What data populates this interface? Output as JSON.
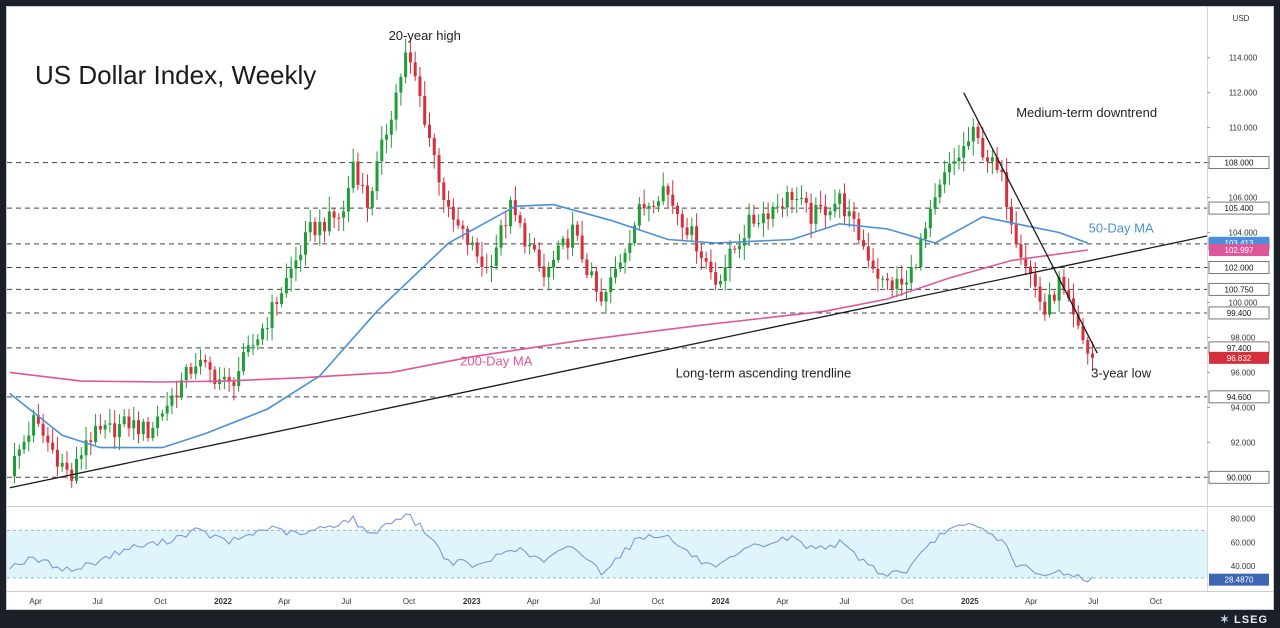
{
  "title": "US Dollar Index, Weekly",
  "axis_unit": "USD",
  "brand": "LSEG",
  "colors": {
    "up": "#1f9d37",
    "down": "#d62f3c",
    "ma50": "#4a90d9",
    "ma200": "#e0569a",
    "trend": "#1a1a1a",
    "rsi_line": "#7a98d8",
    "rsi_band": "#dff5fb"
  },
  "chart_data": [
    {
      "type": "candlestick",
      "title": "US Dollar Index, Weekly",
      "ylim": [
        88.5,
        115.5
      ],
      "xlim": [
        "2021-02-18",
        "2025-12-15"
      ],
      "y_ticks": [
        "114.000",
        "112.000",
        "110.000",
        "108.000",
        "106.000",
        "104.000",
        "102.000",
        "100.000",
        "98.000",
        "96.000",
        "94.000",
        "92.000",
        "90.000"
      ],
      "x_ticks": [
        {
          "label": "Apr",
          "date": "2021-04-01"
        },
        {
          "label": "Jul",
          "date": "2021-07-01"
        },
        {
          "label": "Oct",
          "date": "2021-10-01"
        },
        {
          "label": "2022",
          "date": "2022-01-01"
        },
        {
          "label": "Apr",
          "date": "2022-04-01"
        },
        {
          "label": "Jul",
          "date": "2022-07-01"
        },
        {
          "label": "Oct",
          "date": "2022-10-01"
        },
        {
          "label": "2023",
          "date": "2023-01-01"
        },
        {
          "label": "Apr",
          "date": "2023-04-01"
        },
        {
          "label": "Jul",
          "date": "2023-07-01"
        },
        {
          "label": "Oct",
          "date": "2023-10-01"
        },
        {
          "label": "2024",
          "date": "2024-01-01"
        },
        {
          "label": "Apr",
          "date": "2024-04-01"
        },
        {
          "label": "Jul",
          "date": "2024-07-01"
        },
        {
          "label": "Oct",
          "date": "2024-10-01"
        },
        {
          "label": "2025",
          "date": "2025-01-01"
        },
        {
          "label": "Apr",
          "date": "2025-04-01"
        },
        {
          "label": "Jul",
          "date": "2025-07-01"
        },
        {
          "label": "Oct",
          "date": "2025-10-01"
        }
      ],
      "horizontal_levels": [
        {
          "value": 108.0,
          "label": "108.000"
        },
        {
          "value": 105.4,
          "label": "105.400"
        },
        {
          "value": 103.35,
          "label": "103.350"
        },
        {
          "value": 102.0,
          "label": "102.000"
        },
        {
          "value": 100.75,
          "label": "100.750"
        },
        {
          "value": 99.4,
          "label": "99.400"
        },
        {
          "value": 97.4,
          "label": "97.400"
        },
        {
          "value": 94.6,
          "label": "94.600"
        },
        {
          "value": 90.0,
          "label": "90.000"
        }
      ],
      "value_tags": [
        {
          "value": 103.413,
          "label": "103.413",
          "color": "#4a90d9"
        },
        {
          "value": 102.997,
          "label": "102.997",
          "color": "#e0569a"
        },
        {
          "value": 96.832,
          "label": "96.832",
          "color": "#d62f3c"
        }
      ],
      "price_path": [
        [
          "2021-02-22",
          90.4
        ],
        [
          "2021-03-29",
          93.2
        ],
        [
          "2021-05-24",
          89.9
        ],
        [
          "2021-06-14",
          92.2
        ],
        [
          "2021-08-16",
          93.1
        ],
        [
          "2021-09-13",
          92.6
        ],
        [
          "2021-11-22",
          96.6
        ],
        [
          "2022-01-10",
          95.2
        ],
        [
          "2022-03-07",
          99.0
        ],
        [
          "2022-05-09",
          104.1
        ],
        [
          "2022-06-27",
          105.1
        ],
        [
          "2022-07-11",
          108.1
        ],
        [
          "2022-08-01",
          105.6
        ],
        [
          "2022-09-26",
          114.1
        ],
        [
          "2022-10-10",
          112.8
        ],
        [
          "2022-11-28",
          105.0
        ],
        [
          "2023-01-23",
          101.9
        ],
        [
          "2023-02-27",
          105.4
        ],
        [
          "2023-04-17",
          101.4
        ],
        [
          "2023-05-29",
          104.1
        ],
        [
          "2023-07-10",
          99.8
        ],
        [
          "2023-09-04",
          105.2
        ],
        [
          "2023-10-09",
          106.6
        ],
        [
          "2023-11-27",
          103.4
        ],
        [
          "2023-12-25",
          101.2
        ],
        [
          "2024-02-12",
          104.5
        ],
        [
          "2024-04-15",
          106.2
        ],
        [
          "2024-05-13",
          104.9
        ],
        [
          "2024-06-24",
          105.9
        ],
        [
          "2024-08-26",
          101.1
        ],
        [
          "2024-09-30",
          101.0
        ],
        [
          "2024-11-25",
          107.2
        ],
        [
          "2025-01-06",
          109.6
        ],
        [
          "2025-02-17",
          107.0
        ],
        [
          "2025-03-10",
          103.8
        ],
        [
          "2025-04-21",
          99.4
        ],
        [
          "2025-05-12",
          101.1
        ],
        [
          "2025-06-09",
          98.3
        ],
        [
          "2025-06-23",
          97.2
        ],
        [
          "2025-07-01",
          96.8
        ]
      ],
      "ma50": [
        [
          "2021-02-22",
          94.8
        ],
        [
          "2021-05-10",
          92.4
        ],
        [
          "2021-07-05",
          91.7
        ],
        [
          "2021-10-04",
          91.7
        ],
        [
          "2021-12-06",
          92.5
        ],
        [
          "2022-03-07",
          93.9
        ],
        [
          "2022-05-23",
          95.8
        ],
        [
          "2022-08-15",
          99.5
        ],
        [
          "2022-11-28",
          103.4
        ],
        [
          "2023-03-06",
          105.5
        ],
        [
          "2023-05-01",
          105.6
        ],
        [
          "2023-07-24",
          104.7
        ],
        [
          "2023-10-16",
          103.6
        ],
        [
          "2023-12-25",
          103.4
        ],
        [
          "2024-04-15",
          103.6
        ],
        [
          "2024-06-24",
          104.5
        ],
        [
          "2024-09-02",
          104.2
        ],
        [
          "2024-11-11",
          103.4
        ],
        [
          "2025-01-20",
          104.9
        ],
        [
          "2025-03-10",
          104.5
        ],
        [
          "2025-05-12",
          104.0
        ],
        [
          "2025-06-23",
          103.4
        ]
      ],
      "ma200": [
        [
          "2021-02-22",
          96.0
        ],
        [
          "2021-06-07",
          95.5
        ],
        [
          "2021-10-04",
          95.45
        ],
        [
          "2022-01-03",
          95.5
        ],
        [
          "2022-05-02",
          95.7
        ],
        [
          "2022-09-05",
          96.0
        ],
        [
          "2023-01-02",
          96.9
        ],
        [
          "2023-06-05",
          97.8
        ],
        [
          "2023-12-04",
          98.7
        ],
        [
          "2024-06-03",
          99.5
        ],
        [
          "2024-09-02",
          100.2
        ],
        [
          "2024-12-02",
          101.4
        ],
        [
          "2025-03-03",
          102.4
        ],
        [
          "2025-06-23",
          103.0
        ]
      ],
      "lines": [
        {
          "name": "Long-term ascending trendline",
          "from": [
            "2021-02-22",
            89.4
          ],
          "to": [
            "2025-12-15",
            103.8
          ]
        },
        {
          "name": "Medium-term downtrend",
          "from": [
            "2024-12-23",
            112.0
          ],
          "to": [
            "2025-07-07",
            97.1
          ]
        }
      ],
      "annotations": [
        {
          "text": "20-year high",
          "at": [
            "2022-10-24",
            115.0
          ]
        },
        {
          "text": "Medium-term downtrend",
          "at": [
            "2025-03-10",
            110.6
          ]
        },
        {
          "text": "50-Day MA",
          "at": [
            "2025-08-11",
            104.0
          ]
        },
        {
          "text": "200-Day MA",
          "at": [
            "2023-02-06",
            96.4
          ]
        },
        {
          "text": "Long-term ascending trendline",
          "at": [
            "2024-03-04",
            95.7
          ]
        },
        {
          "text": "3-year low",
          "at": [
            "2025-08-11",
            95.7
          ]
        }
      ]
    },
    {
      "type": "line",
      "ylim": [
        24,
        88
      ],
      "y_ticks": [
        "80.000",
        "60.000",
        "40.000"
      ],
      "band": [
        30,
        70
      ],
      "last_value": {
        "value": 28.487,
        "label": "28.4870"
      },
      "values": [
        [
          "2021-02-22",
          40
        ],
        [
          "2021-03-29",
          46
        ],
        [
          "2021-05-24",
          36
        ],
        [
          "2021-06-21",
          42
        ],
        [
          "2021-08-16",
          55
        ],
        [
          "2021-10-04",
          60
        ],
        [
          "2021-11-22",
          70
        ],
        [
          "2022-01-10",
          60
        ],
        [
          "2022-03-07",
          72
        ],
        [
          "2022-04-25",
          66
        ],
        [
          "2022-06-13",
          75
        ],
        [
          "2022-07-11",
          80
        ],
        [
          "2022-08-01",
          66
        ],
        [
          "2022-09-26",
          84
        ],
        [
          "2022-10-24",
          70
        ],
        [
          "2022-11-28",
          44
        ],
        [
          "2023-01-16",
          40
        ],
        [
          "2023-02-27",
          56
        ],
        [
          "2023-04-17",
          44
        ],
        [
          "2023-05-29",
          57
        ],
        [
          "2023-07-10",
          35
        ],
        [
          "2023-09-04",
          64
        ],
        [
          "2023-10-09",
          67
        ],
        [
          "2023-11-27",
          46
        ],
        [
          "2023-12-25",
          37
        ],
        [
          "2024-02-12",
          55
        ],
        [
          "2024-04-15",
          64
        ],
        [
          "2024-05-13",
          55
        ],
        [
          "2024-06-24",
          59
        ],
        [
          "2024-08-26",
          33
        ],
        [
          "2024-09-30",
          36
        ],
        [
          "2024-11-25",
          70
        ],
        [
          "2025-01-06",
          74
        ],
        [
          "2025-02-17",
          62
        ],
        [
          "2025-03-10",
          42
        ],
        [
          "2025-04-21",
          30
        ],
        [
          "2025-05-12",
          36
        ],
        [
          "2025-06-09",
          31
        ],
        [
          "2025-07-01",
          28.5
        ]
      ]
    }
  ]
}
